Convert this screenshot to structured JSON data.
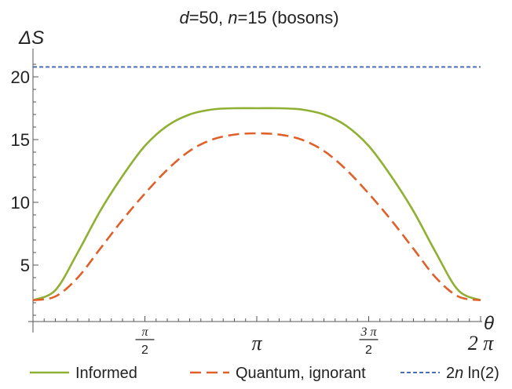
{
  "chart_data": {
    "type": "line",
    "title": "d=50, n=15 (bosons)",
    "ylabel": "ΔS",
    "xlabel": "θ",
    "xlim": [
      0,
      6.2832
    ],
    "ylim": [
      0.5,
      22
    ],
    "y_ticks": [
      5,
      10,
      15,
      20
    ],
    "x_ticks": [
      {
        "value": 1.5708,
        "num": "π",
        "den": "2"
      },
      {
        "value": 3.1416,
        "label": "π"
      },
      {
        "value": 4.7124,
        "num": "3 π",
        "den": "2"
      },
      {
        "value": 6.2832,
        "label": "2 π"
      }
    ],
    "grid": false,
    "legend_position": "bottom",
    "series": [
      {
        "name": "Informed",
        "color": "#8fb032",
        "style": "solid",
        "x": [
          0,
          0.3142,
          0.6283,
          0.9425,
          1.2566,
          1.5708,
          1.885,
          2.1991,
          2.5133,
          2.8274,
          3.1416,
          3.4558,
          3.7699,
          4.0841,
          4.3982,
          4.7124,
          5.0265,
          5.3407,
          5.6549,
          5.969,
          6.2832
        ],
        "y": [
          2.2,
          3.0,
          6.0,
          9.3,
          12.1,
          14.5,
          16.1,
          17.0,
          17.4,
          17.5,
          17.5,
          17.5,
          17.4,
          17.0,
          16.1,
          14.5,
          12.1,
          9.3,
          6.0,
          3.0,
          2.2
        ]
      },
      {
        "name": "Quantum, ignorant",
        "color": "#e0602a",
        "style": "dashed",
        "x": [
          0,
          0.3142,
          0.6283,
          0.9425,
          1.2566,
          1.5708,
          1.885,
          2.1991,
          2.5133,
          2.8274,
          3.1416,
          3.4558,
          3.7699,
          4.0841,
          4.3982,
          4.7124,
          5.0265,
          5.3407,
          5.6549,
          5.969,
          6.2832
        ],
        "y": [
          2.2,
          2.5,
          4.0,
          6.3,
          8.6,
          10.7,
          12.6,
          14.1,
          15.0,
          15.4,
          15.5,
          15.4,
          15.0,
          14.1,
          12.6,
          10.7,
          8.6,
          6.3,
          4.0,
          2.5,
          2.2
        ]
      },
      {
        "name": "2n ln(2)",
        "legend_parts": [
          "2",
          "n",
          " ln(2)"
        ],
        "color": "#4a6fb5",
        "style": "dotted",
        "x": [
          0,
          6.2832
        ],
        "y": [
          20.79,
          20.79
        ]
      }
    ]
  }
}
